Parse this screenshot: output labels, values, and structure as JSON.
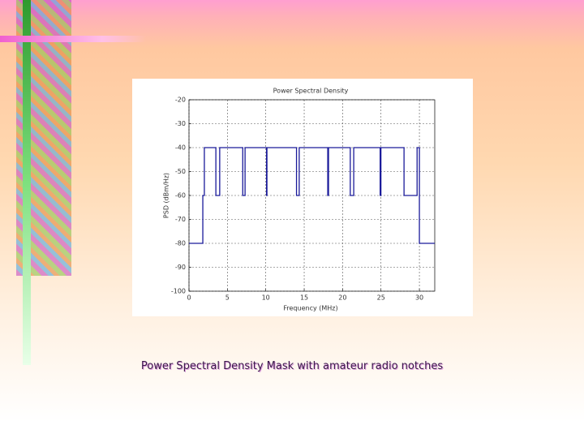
{
  "caption": "Power Spectral Density Mask with amateur radio notches",
  "chart_data": {
    "type": "line",
    "title": "Power Spectral Density",
    "x_label": "Frequency (MHz)",
    "y_label": "PSD (dBm/Hz)",
    "x": [
      0,
      1.8,
      1.8,
      2.0,
      2.0,
      3.5,
      3.5,
      4.0,
      4.0,
      7.0,
      7.0,
      7.3,
      7.3,
      10.1,
      10.1,
      10.15,
      10.15,
      14.0,
      14.0,
      14.35,
      14.35,
      18.068,
      18.068,
      18.168,
      18.168,
      21.0,
      21.0,
      21.45,
      21.45,
      24.89,
      24.89,
      24.99,
      24.99,
      28.0,
      28.0,
      29.7,
      29.7,
      30,
      30,
      32
    ],
    "values": [
      -80,
      -80,
      -60,
      -60,
      -40,
      -40,
      -60,
      -60,
      -40,
      -40,
      -60,
      -60,
      -40,
      -40,
      -60,
      -60,
      -40,
      -40,
      -60,
      -60,
      -40,
      -40,
      -60,
      -60,
      -40,
      -40,
      -60,
      -60,
      -40,
      -40,
      -60,
      -60,
      -40,
      -40,
      -60,
      -60,
      -40,
      -40,
      -80,
      -80
    ],
    "color": "#1a1a9a",
    "xlim": [
      0,
      32
    ],
    "ylim": [
      -100,
      -20
    ],
    "xticks": [
      0,
      5,
      10,
      15,
      20,
      25,
      30
    ],
    "yticks": [
      -20,
      -30,
      -40,
      -50,
      -60,
      -70,
      -80,
      -90,
      -100
    ],
    "grid": true
  }
}
